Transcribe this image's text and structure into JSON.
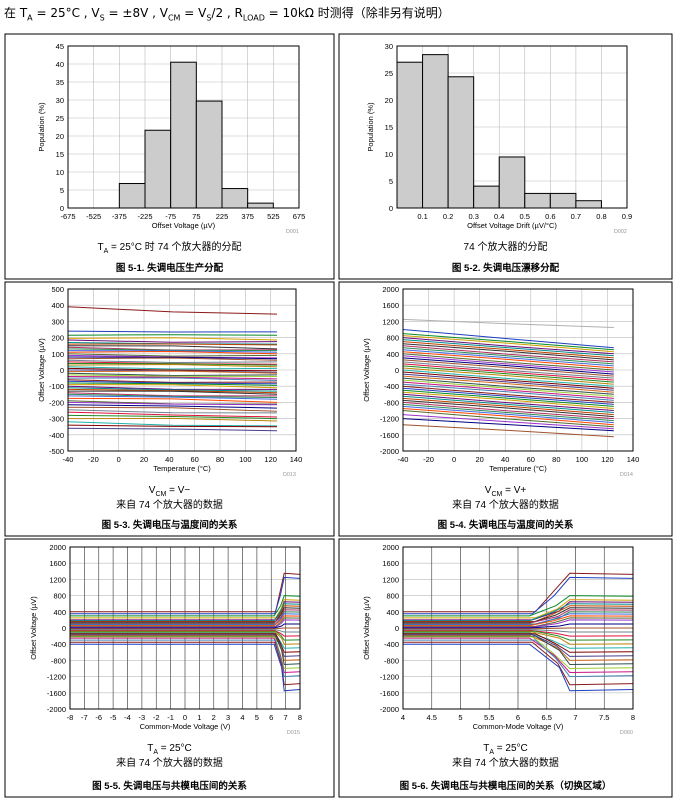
{
  "header": {
    "prefix": "在 T",
    "ta_sub": "A",
    "ta_val": " = 25°C , V",
    "vs_sub": "S",
    "vs_val": " = ±8V , V",
    "vcm_sub": "CM",
    "vcm_mid": " = V",
    "vs2_sub": "S",
    "vcm_val": "/2 , R",
    "rload_sub": "LOAD",
    "rload_val": " = 10kΩ  时测得（除非另有说明）"
  },
  "charts": [
    {
      "id": "fig-5-1",
      "code": "D001",
      "note_lines": [
        {
          "prefix": "T",
          "sub": "A",
          "rest": " = 25°C 时 74 个放大器的分配"
        }
      ],
      "figure_title": "图 5-1. 失调电压生产分配",
      "chart_data": {
        "type": "bar",
        "xlabel": "Offset Voltage (µV)",
        "ylabel": "Population (%)",
        "xticks": [
          -675,
          -525,
          -375,
          -225,
          -75,
          75,
          225,
          375,
          525,
          675
        ],
        "xlim": [
          -675,
          675
        ],
        "ylim": [
          0,
          45
        ],
        "yticks": [
          0,
          5,
          10,
          15,
          20,
          25,
          30,
          35,
          40,
          45
        ],
        "bins": [
          [
            -675,
            -525
          ],
          [
            -525,
            -375
          ],
          [
            -375,
            -225
          ],
          [
            -225,
            -75
          ],
          [
            -75,
            75
          ],
          [
            75,
            225
          ],
          [
            225,
            375
          ],
          [
            375,
            525
          ],
          [
            525,
            675
          ]
        ],
        "values": [
          0,
          0,
          6.8,
          21.6,
          40.5,
          29.7,
          5.4,
          1.35,
          0
        ],
        "grid": true
      }
    },
    {
      "id": "fig-5-2",
      "code": "D002",
      "note_lines": [
        {
          "prefix": "74 个放大器的分配",
          "sub": "",
          "rest": ""
        }
      ],
      "figure_title": "图 5-2. 失调电压漂移分配",
      "chart_data": {
        "type": "bar",
        "xlabel": "Offset Voltage Drift (µV/°C)",
        "ylabel": "Population (%)",
        "xticks": [
          0.1,
          0.2,
          0.3,
          0.4,
          0.5,
          0.6,
          0.7,
          0.8,
          0.9
        ],
        "xlim": [
          0,
          0.9
        ],
        "ylim": [
          0,
          30
        ],
        "yticks": [
          0,
          5,
          10,
          15,
          20,
          25,
          30
        ],
        "bins": [
          [
            0,
            0.1
          ],
          [
            0.1,
            0.2
          ],
          [
            0.2,
            0.3
          ],
          [
            0.3,
            0.4
          ],
          [
            0.4,
            0.5
          ],
          [
            0.5,
            0.6
          ],
          [
            0.6,
            0.7
          ],
          [
            0.7,
            0.8
          ]
        ],
        "values": [
          27.0,
          28.4,
          24.3,
          4.05,
          9.45,
          2.7,
          2.7,
          1.35
        ],
        "grid": true
      }
    },
    {
      "id": "fig-5-3",
      "code": "D013",
      "note_lines": [
        {
          "prefix": "V",
          "sub": "CM",
          "rest": " = V−"
        },
        {
          "prefix": "来自 74 个放大器的数据",
          "sub": "",
          "rest": ""
        }
      ],
      "figure_title": "图 5-3. 失调电压与温度间的关系",
      "chart_data": {
        "type": "line",
        "xlabel": "Temperature (°C)",
        "ylabel": "Offset Voltage (µV)",
        "xlim": [
          -40,
          140
        ],
        "ylim": [
          -500,
          500
        ],
        "xticks": [
          -40,
          -20,
          0,
          20,
          40,
          60,
          80,
          100,
          120,
          140
        ],
        "yticks": [
          -500,
          -400,
          -300,
          -200,
          -100,
          0,
          100,
          200,
          300,
          400,
          500
        ],
        "x": [
          -40,
          125
        ],
        "series_start": [
          390,
          240,
          215,
          195,
          185,
          170,
          160,
          150,
          140,
          130,
          120,
          110,
          100,
          90,
          80,
          70,
          60,
          50,
          40,
          30,
          20,
          10,
          0,
          -10,
          -20,
          -30,
          -40,
          -50,
          -60,
          -70,
          -80,
          -90,
          -100,
          -110,
          -120,
          -130,
          -140,
          -150,
          -160,
          -175,
          -190,
          -200,
          -215,
          -230,
          -245,
          -260,
          -280,
          -300,
          -320,
          -340,
          -360
        ],
        "series_end": [
          345,
          235,
          215,
          185,
          175,
          160,
          155,
          130,
          125,
          120,
          110,
          100,
          90,
          75,
          70,
          60,
          50,
          35,
          30,
          20,
          10,
          -5,
          -15,
          -20,
          -30,
          -40,
          -55,
          -65,
          -75,
          -85,
          -95,
          -110,
          -120,
          -130,
          -140,
          -150,
          -160,
          -170,
          -180,
          -200,
          -210,
          -215,
          -235,
          -255,
          -265,
          -290,
          -300,
          -315,
          -345,
          -350,
          -375
        ],
        "grid": true
      }
    },
    {
      "id": "fig-5-4",
      "code": "D014",
      "note_lines": [
        {
          "prefix": "V",
          "sub": "CM",
          "rest": " = V+"
        },
        {
          "prefix": "来自 74 个放大器的数据",
          "sub": "",
          "rest": ""
        }
      ],
      "figure_title": "图 5-4. 失调电压与温度间的关系",
      "chart_data": {
        "type": "line",
        "xlabel": "Temperature (°C)",
        "ylabel": "Offset Voltage (µV)",
        "xlim": [
          -40,
          140
        ],
        "ylim": [
          -2000,
          2000
        ],
        "xticks": [
          -40,
          -20,
          0,
          20,
          40,
          60,
          80,
          100,
          120,
          140
        ],
        "yticks": [
          -2000,
          -1600,
          -1200,
          -800,
          -400,
          0,
          400,
          800,
          1200,
          1600,
          2000
        ],
        "x": [
          -40,
          125
        ],
        "series_start": [
          1250,
          1000,
          900,
          850,
          800,
          750,
          700,
          650,
          600,
          550,
          500,
          450,
          400,
          350,
          300,
          250,
          200,
          150,
          100,
          50,
          0,
          -50,
          -100,
          -150,
          -200,
          -250,
          -300,
          -350,
          -400,
          -450,
          -500,
          -550,
          -600,
          -650,
          -700,
          -750,
          -800,
          -850,
          -900,
          -950,
          -1000,
          -1100,
          -1200,
          -1350
        ],
        "series_end": [
          1050,
          550,
          500,
          450,
          400,
          350,
          300,
          250,
          200,
          150,
          100,
          50,
          0,
          -50,
          -100,
          -150,
          -200,
          -250,
          -300,
          -350,
          -400,
          -450,
          -500,
          -550,
          -600,
          -650,
          -700,
          -750,
          -800,
          -850,
          -900,
          -950,
          -1000,
          -1050,
          -1100,
          -1150,
          -1200,
          -1250,
          -1300,
          -1350,
          -1400,
          -1450,
          -1500,
          -1650
        ],
        "grid": true
      }
    },
    {
      "id": "fig-5-5",
      "code": "D015",
      "note_lines": [
        {
          "prefix": "T",
          "sub": "A",
          "rest": " = 25°C"
        },
        {
          "prefix": "来自 74 个放大器的数据",
          "sub": "",
          "rest": ""
        }
      ],
      "figure_title": "图 5-5. 失调电压与共模电压间的关系",
      "chart_data": {
        "type": "line",
        "xlabel": "Common-Mode Voltage (V)",
        "ylabel": "Offset Voltage (µV)",
        "xlim": [
          -8,
          8
        ],
        "ylim": [
          -2000,
          2000
        ],
        "xticks": [
          -8,
          -7,
          -6,
          -5,
          -4,
          -3,
          -2,
          -1,
          0,
          1,
          2,
          3,
          4,
          5,
          6,
          7,
          8
        ],
        "yticks": [
          -2000,
          -1600,
          -1200,
          -800,
          -400,
          0,
          400,
          800,
          1200,
          1600,
          2000
        ],
        "transition": [
          6.3,
          6.9
        ],
        "series_start": [
          400,
          350,
          300,
          250,
          200,
          180,
          160,
          140,
          120,
          100,
          80,
          60,
          40,
          20,
          0,
          -20,
          -40,
          -60,
          -80,
          -100,
          -120,
          -140,
          -160,
          -180,
          -200,
          -220,
          -250,
          -300,
          -350,
          -400
        ],
        "series_end": [
          1350,
          1250,
          800,
          700,
          650,
          600,
          550,
          500,
          450,
          400,
          350,
          300,
          250,
          200,
          100,
          0,
          -100,
          -200,
          -300,
          -400,
          -500,
          -600,
          -700,
          -800,
          -900,
          -1000,
          -1100,
          -1200,
          -1400,
          -1550
        ],
        "grid": true
      }
    },
    {
      "id": "fig-5-6",
      "code": "D060",
      "note_lines": [
        {
          "prefix": "T",
          "sub": "A",
          "rest": " = 25°C"
        },
        {
          "prefix": "来自 74 个放大器的数据",
          "sub": "",
          "rest": ""
        }
      ],
      "figure_title": "图 5-6. 失调电压与共模电压间的关系（切换区域）",
      "chart_data": {
        "type": "line",
        "xlabel": "Common-Mode Voltage (V)",
        "ylabel": "Offset Voltage (µV)",
        "xlim": [
          4,
          8
        ],
        "ylim": [
          -2000,
          2000
        ],
        "xticks": [
          4,
          4.5,
          5,
          5.5,
          6,
          6.5,
          7,
          7.5,
          8
        ],
        "yticks": [
          -2000,
          -1600,
          -1200,
          -800,
          -400,
          0,
          400,
          800,
          1200,
          1600,
          2000
        ],
        "transition": [
          6.3,
          6.9
        ],
        "series_start": [
          400,
          350,
          300,
          250,
          200,
          180,
          160,
          140,
          120,
          100,
          80,
          60,
          40,
          20,
          0,
          -20,
          -40,
          -60,
          -80,
          -100,
          -120,
          -140,
          -160,
          -180,
          -200,
          -220,
          -250,
          -300,
          -350,
          -400
        ],
        "series_end": [
          1350,
          1250,
          800,
          700,
          650,
          600,
          550,
          500,
          450,
          400,
          350,
          300,
          250,
          200,
          100,
          0,
          -100,
          -200,
          -300,
          -400,
          -500,
          -600,
          -700,
          -800,
          -900,
          -1000,
          -1100,
          -1200,
          -1400,
          -1550
        ],
        "grid": true
      }
    }
  ]
}
